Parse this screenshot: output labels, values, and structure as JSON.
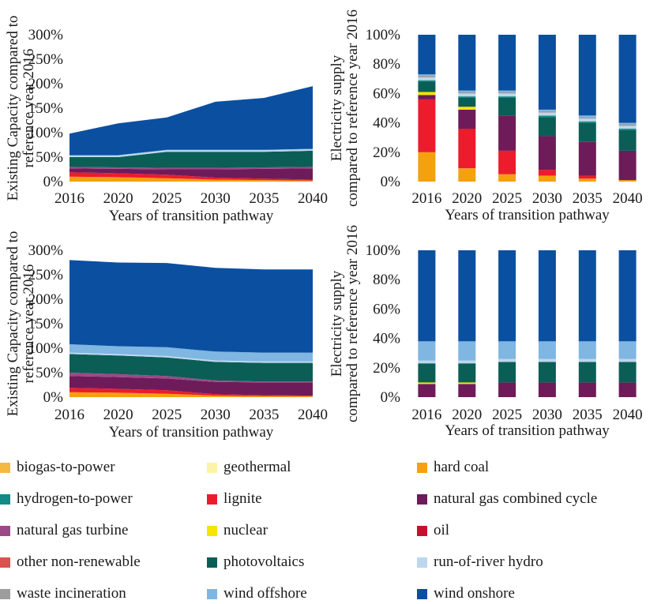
{
  "colors": {
    "biogas-to-power": "#f5b942",
    "geothermal": "#fdf3a6",
    "hard coal": "#f4a10d",
    "hydrogen-to-power": "#138a86",
    "lignite": "#ec1c2c",
    "natural gas combined cycle": "#6e1b5a",
    "natural gas turbine": "#9a4a86",
    "nuclear": "#f7e400",
    "oil": "#c8102e",
    "other non-renewable": "#d9534f",
    "photovoltaics": "#0b5e55",
    "run-of-river hydro": "#bcd7ee",
    "waste incineration": "#9d9d9d",
    "wind offshore": "#7fb6e2",
    "wind onshore": "#0b4fa0"
  },
  "legend": [
    "biogas-to-power",
    "geothermal",
    "hard coal",
    "hydrogen-to-power",
    "lignite",
    "natural gas combined cycle",
    "natural gas turbine",
    "nuclear",
    "oil",
    "other non-renewable",
    "photovoltaics",
    "run-of-river hydro",
    "waste incineration",
    "wind offshore",
    "wind onshore"
  ],
  "chart_data": [
    {
      "type": "area",
      "title": "",
      "xlabel": "Years of transition pathway",
      "ylabel": "Existing Capacity compared to reference year 2016",
      "ylim": [
        0,
        300
      ],
      "yticks": [
        "0%",
        "50%",
        "100%",
        "150%",
        "200%",
        "250%",
        "300%"
      ],
      "categories": [
        "2016",
        "2020",
        "2025",
        "2030",
        "2035",
        "2040"
      ],
      "series": [
        {
          "name": "hard coal",
          "values": [
            10,
            9,
            7,
            4,
            3,
            2
          ]
        },
        {
          "name": "lignite",
          "values": [
            9,
            8,
            7,
            4,
            3,
            2
          ]
        },
        {
          "name": "natural gas combined cycle",
          "values": [
            8,
            9,
            11,
            17,
            20,
            23
          ]
        },
        {
          "name": "natural gas turbine",
          "values": [
            3,
            3,
            3,
            3,
            3,
            3
          ]
        },
        {
          "name": "photovoltaics",
          "values": [
            20,
            21,
            33,
            33,
            32,
            33
          ]
        },
        {
          "name": "run-of-river hydro",
          "values": [
            3,
            3,
            3,
            3,
            3,
            3
          ]
        },
        {
          "name": "wind offshore",
          "values": [
            1,
            1,
            1,
            1,
            1,
            1
          ]
        },
        {
          "name": "wind onshore",
          "values": [
            44,
            65,
            66,
            98,
            106,
            128
          ]
        }
      ]
    },
    {
      "type": "bar",
      "title": "",
      "xlabel": "Years of transition pathway",
      "ylabel": "Electricity supply compared to reference year 2016",
      "ylim": [
        0,
        100
      ],
      "yticks": [
        "0%",
        "20%",
        "40%",
        "60%",
        "80%",
        "100%"
      ],
      "categories": [
        "2016",
        "2020",
        "2025",
        "2030",
        "2035",
        "2040"
      ],
      "series": [
        {
          "name": "hard coal",
          "values": [
            20,
            9,
            5,
            4,
            2,
            1
          ]
        },
        {
          "name": "lignite",
          "values": [
            36,
            27,
            16,
            4,
            2,
            0
          ]
        },
        {
          "name": "natural gas combined cycle",
          "values": [
            3,
            13,
            24,
            23,
            23,
            20
          ]
        },
        {
          "name": "nuclear",
          "values": [
            2,
            2,
            0,
            0,
            0,
            0
          ]
        },
        {
          "name": "photovoltaics",
          "values": [
            7,
            6,
            12,
            13,
            13,
            14
          ]
        },
        {
          "name": "hydrogen-to-power",
          "values": [
            1,
            1,
            1,
            1,
            1,
            1
          ]
        },
        {
          "name": "run-of-river hydro",
          "values": [
            2,
            2,
            2,
            2,
            2,
            2
          ]
        },
        {
          "name": "waste incineration",
          "values": [
            1,
            1,
            1,
            1,
            1,
            1
          ]
        },
        {
          "name": "wind offshore",
          "values": [
            1,
            1,
            1,
            1,
            1,
            1
          ]
        },
        {
          "name": "wind onshore",
          "values": [
            27,
            38,
            38,
            51,
            55,
            60
          ]
        }
      ]
    },
    {
      "type": "area",
      "title": "",
      "xlabel": "Years of transition pathway",
      "ylabel": "Existing Capacity compared to reference year 2016",
      "ylim": [
        0,
        300
      ],
      "yticks": [
        "0%",
        "50%",
        "100%",
        "150%",
        "200%",
        "250%",
        "300%"
      ],
      "categories": [
        "2016",
        "2020",
        "2025",
        "2030",
        "2035",
        "2040"
      ],
      "series": [
        {
          "name": "hard coal",
          "values": [
            10,
            9,
            7,
            3,
            2,
            2
          ]
        },
        {
          "name": "lignite",
          "values": [
            9,
            8,
            7,
            3,
            2,
            1
          ]
        },
        {
          "name": "natural gas combined cycle",
          "values": [
            24,
            24,
            24,
            25,
            26,
            27
          ]
        },
        {
          "name": "natural gas turbine",
          "values": [
            7,
            6,
            5,
            3,
            2,
            2
          ]
        },
        {
          "name": "photovoltaics",
          "values": [
            38,
            38,
            38,
            38,
            38,
            38
          ]
        },
        {
          "name": "run-of-river hydro",
          "values": [
            3,
            3,
            3,
            3,
            3,
            3
          ]
        },
        {
          "name": "wind offshore",
          "values": [
            17,
            16,
            18,
            18,
            18,
            18
          ]
        },
        {
          "name": "wind onshore",
          "values": [
            172,
            171,
            172,
            171,
            170,
            170
          ]
        }
      ]
    },
    {
      "type": "bar",
      "title": "",
      "xlabel": "Years of transition pathway",
      "ylabel": "Electricity supply compared to reference year 2016",
      "ylim": [
        0,
        100
      ],
      "yticks": [
        "0%",
        "20%",
        "40%",
        "60%",
        "80%",
        "100%"
      ],
      "categories": [
        "2016",
        "2020",
        "2025",
        "2030",
        "2035",
        "2040"
      ],
      "series": [
        {
          "name": "natural gas combined cycle",
          "values": [
            9,
            9,
            10,
            10,
            10,
            10
          ]
        },
        {
          "name": "nuclear",
          "values": [
            1,
            1,
            0,
            0,
            0,
            0
          ]
        },
        {
          "name": "photovoltaics",
          "values": [
            13,
            13,
            14,
            14,
            14,
            14
          ]
        },
        {
          "name": "run-of-river hydro",
          "values": [
            2,
            2,
            2,
            2,
            2,
            2
          ]
        },
        {
          "name": "wind offshore",
          "values": [
            13,
            13,
            12,
            12,
            12,
            12
          ]
        },
        {
          "name": "wind onshore",
          "values": [
            62,
            62,
            62,
            62,
            62,
            62
          ]
        }
      ]
    }
  ]
}
